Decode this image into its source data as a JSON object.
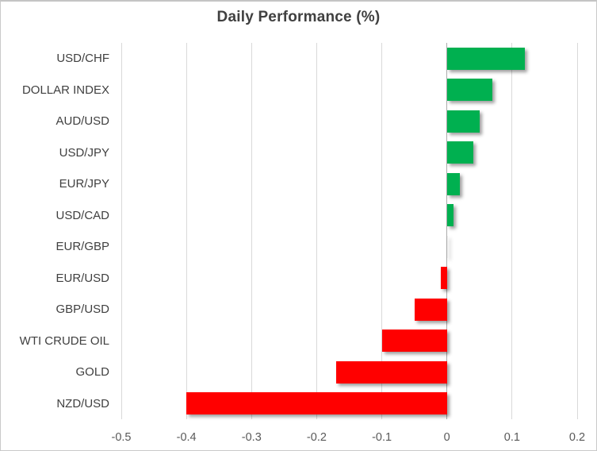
{
  "chart_data": {
    "type": "bar",
    "orientation": "horizontal",
    "title": "Daily Performance (%)",
    "categories": [
      "USD/CHF",
      "DOLLAR INDEX",
      "AUD/USD",
      "USD/JPY",
      "EUR/JPY",
      "USD/CAD",
      "EUR/GBP",
      "EUR/USD",
      "GBP/USD",
      "WTI CRUDE OIL",
      "GOLD",
      "NZD/USD"
    ],
    "values": [
      0.12,
      0.07,
      0.05,
      0.04,
      0.02,
      0.01,
      0.0,
      -0.01,
      -0.05,
      -0.1,
      -0.17,
      -0.4
    ],
    "xlabel": "",
    "ylabel": "",
    "xlim": [
      -0.5,
      0.2
    ],
    "x_ticks": [
      "-0.5",
      "-0.4",
      "-0.3",
      "-0.2",
      "-0.1",
      "0",
      "0.1",
      "0.2"
    ],
    "x_tick_values": [
      -0.5,
      -0.4,
      -0.3,
      -0.2,
      -0.1,
      0,
      0.1,
      0.2
    ],
    "grid": true,
    "legend_position": "none",
    "colors": {
      "positive_bar": "#00B050",
      "negative_bar": "#FF0000",
      "gridline": "#D9D9D9",
      "zero_axis_line": "#ACACAC",
      "title_text": "#404040",
      "category_text": "#404040",
      "tick_text": "#595959",
      "frame_border": "#C9C9C9",
      "background": "#FFFFFF"
    }
  }
}
